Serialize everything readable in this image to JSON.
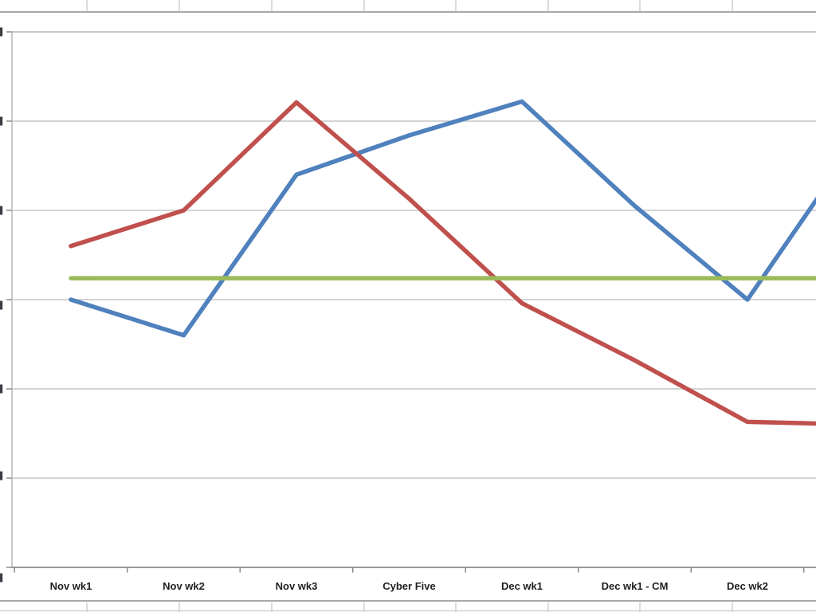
{
  "window": {
    "app_context": "spreadsheet worksheet with embedded line chart",
    "title": ""
  },
  "chart_data": {
    "type": "line",
    "title": "",
    "xlabel": "",
    "ylabel": "",
    "legend": "none",
    "grid": true,
    "categories": [
      "Nov wk1",
      "Nov wk2",
      "Nov wk3",
      "Cyber Five",
      "Dec wk1",
      "Dec wk1 - CM",
      "Dec wk2"
    ],
    "x_axis": {
      "note": "an 8th category is cropped off the right edge; the final line segments run toward it",
      "tick_marks": "outside, at category boundaries"
    },
    "y_axis": {
      "tick_labels_visible": false,
      "note": "y-axis tick labels are cropped at the left screenshot edge; only tiny slivers remain. Values below are in gridline units (1 unit = 1 gridline interval), axis baseline = 0, top border = 6.",
      "ylim": [
        0,
        6
      ],
      "gridline_spacing_units": 1
    },
    "series": [
      {
        "name": "blue-series",
        "color": "#4F81BD",
        "values_units": [
          3.0,
          2.6,
          4.4,
          4.84,
          5.22,
          4.05,
          3.0,
          4.83
        ]
      },
      {
        "name": "red-series",
        "color": "#C0504D",
        "values_units": [
          3.6,
          4.0,
          5.21,
          4.13,
          2.96,
          2.32,
          1.63,
          1.6
        ]
      },
      {
        "name": "green-flat-series",
        "color": "#9BBB59",
        "values_units": [
          3.24,
          3.24,
          3.24,
          3.24,
          3.24,
          3.24,
          3.24,
          3.24
        ]
      }
    ]
  },
  "colors": {
    "background": "#ffffff",
    "plot_gridline": "#c6c6c6",
    "plot_border": "#b5b5b5",
    "axis_line": "#8a8a8a",
    "tick": "#8a8a8a",
    "x_label_text": "#1f1f1f",
    "cropped_label_sliver": "#3c3c44",
    "chart_object_border": "#a8a8a8",
    "sheet_cell_border": "#cfcfd6"
  }
}
